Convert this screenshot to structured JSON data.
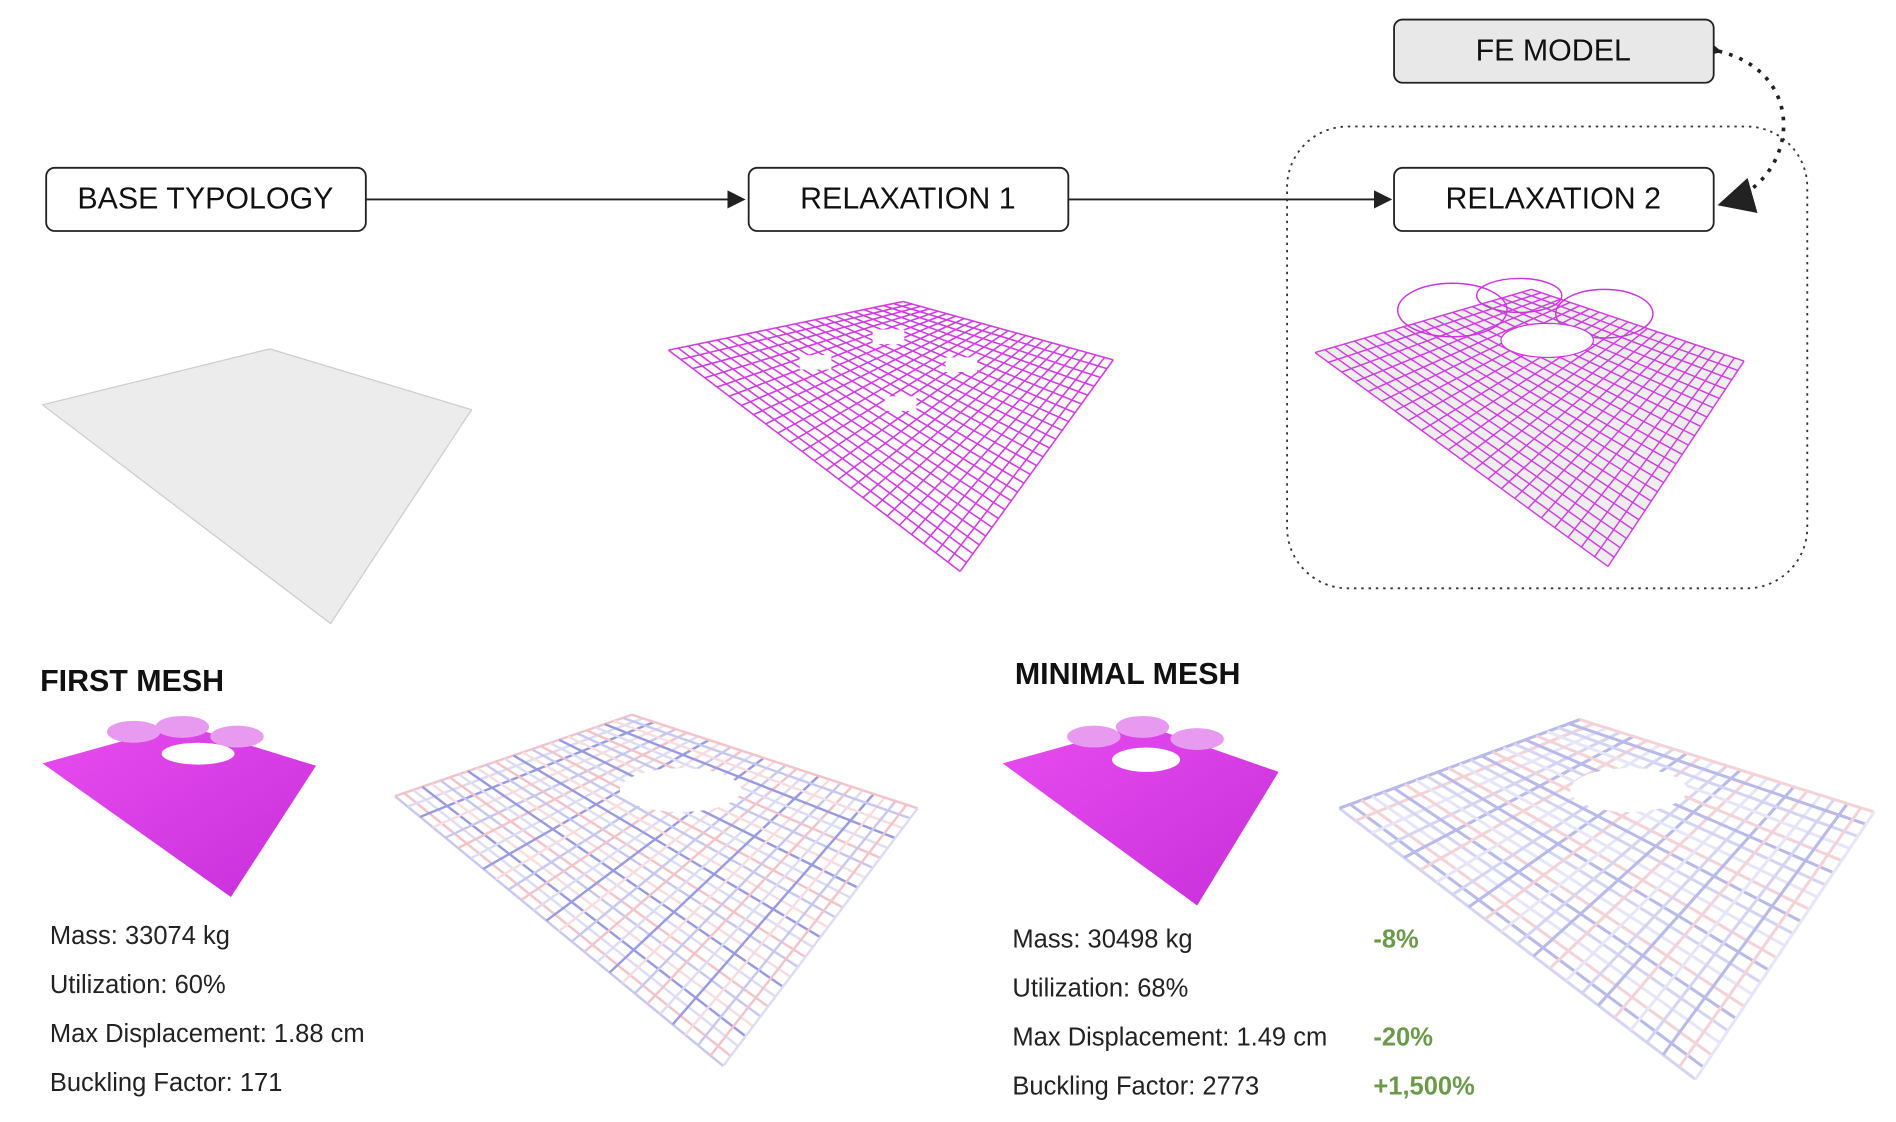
{
  "nodes": [
    {
      "label": "BASE TYPOLOGY"
    },
    {
      "label": "RELAXATION 1"
    },
    {
      "label": "RELAXATION 2"
    },
    {
      "label": "FE MODEL"
    }
  ],
  "panels": [
    {
      "title": "FIRST MESH",
      "metrics": [
        {
          "text": "Mass: 33074 kg"
        },
        {
          "text": "Utilization: 60%"
        },
        {
          "text": "Max Displacement: 1.88 cm"
        },
        {
          "text": "Buckling Factor: 171"
        }
      ]
    },
    {
      "title": "MINIMAL MESH",
      "metrics": [
        {
          "text": "Mass: 30498 kg",
          "change": "-8%"
        },
        {
          "text": "Utilization: 68%"
        },
        {
          "text": "Max Displacement: 1.49 cm",
          "change": "-20%"
        },
        {
          "text": "Buckling Factor: 2773",
          "change": "+1,500%"
        }
      ]
    }
  ]
}
